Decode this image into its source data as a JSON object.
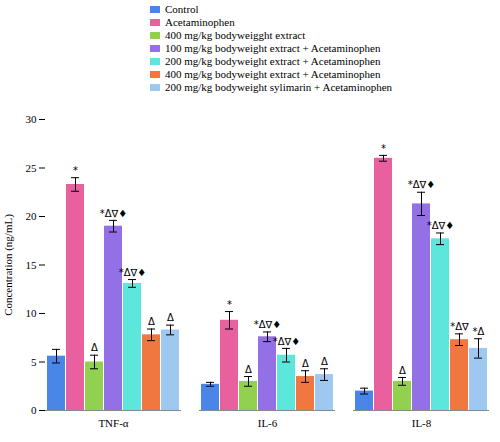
{
  "chart_data": {
    "type": "bar",
    "y_label": "Concentration (ng/mL)",
    "categories": [
      "TNF-α",
      "IL-6",
      "IL-8"
    ],
    "ylim": [
      0,
      30
    ],
    "yticks": [
      0,
      5,
      10,
      15,
      20,
      25,
      30
    ],
    "grid": false,
    "legend": "top",
    "series": [
      {
        "name": "Control",
        "color": "#4a86e8",
        "values": [
          5.6,
          2.7,
          2.0
        ],
        "errors": [
          0.7,
          0.2,
          0.3
        ],
        "annotations": [
          null,
          null,
          null
        ]
      },
      {
        "name": "Acetaminophen",
        "color": "#e8609e",
        "values": [
          23.3,
          9.3,
          26.0
        ],
        "errors": [
          0.7,
          0.9,
          0.3
        ],
        "annotations": [
          "*",
          "*",
          "*"
        ]
      },
      {
        "name": "400 mg/kg bodyweigght extract",
        "color": "#92d050",
        "values": [
          5.0,
          3.0,
          3.0
        ],
        "errors": [
          0.7,
          0.5,
          0.4
        ],
        "annotations": [
          "Δ",
          "Δ",
          "Δ"
        ]
      },
      {
        "name": "100 mg/kg bodyweight extract + Acetaminophen",
        "color": "#9370e6",
        "values": [
          19.0,
          7.6,
          21.3
        ],
        "errors": [
          0.6,
          0.5,
          1.2
        ],
        "annotations": [
          "*Δ∇♦",
          "*Δ∇♦",
          "*Δ∇♦"
        ]
      },
      {
        "name": "200 mg/kg bodyweight extract + Acetaminophen",
        "color": "#5ce6dc",
        "values": [
          13.1,
          5.7,
          17.7
        ],
        "errors": [
          0.4,
          0.7,
          0.6
        ],
        "annotations": [
          "*Δ∇♦",
          "*Δ∇♦",
          "*Δ∇♦"
        ]
      },
      {
        "name": "400 mg/kg bodyweight extract + Acetaminophen",
        "color": "#f07840",
        "values": [
          7.8,
          3.5,
          7.3
        ],
        "errors": [
          0.6,
          0.6,
          0.6
        ],
        "annotations": [
          "Δ",
          "Δ",
          "*Δ∇"
        ]
      },
      {
        "name": "200 mg/kg bodyweight sylimarin + Acetaminophen",
        "color": "#9ec8f0",
        "values": [
          8.3,
          3.7,
          6.4
        ],
        "errors": [
          0.5,
          0.6,
          1.0
        ],
        "annotations": [
          "Δ",
          "Δ",
          "*Δ"
        ]
      }
    ]
  }
}
